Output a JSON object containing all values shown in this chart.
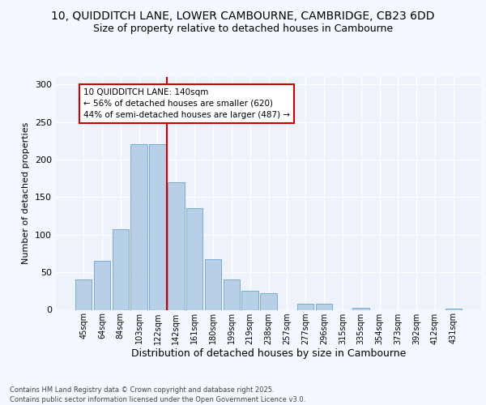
{
  "title_line1": "10, QUIDDITCH LANE, LOWER CAMBOURNE, CAMBRIDGE, CB23 6DD",
  "title_line2": "Size of property relative to detached houses in Cambourne",
  "xlabel": "Distribution of detached houses by size in Cambourne",
  "ylabel": "Number of detached properties",
  "bar_labels": [
    "45sqm",
    "64sqm",
    "84sqm",
    "103sqm",
    "122sqm",
    "142sqm",
    "161sqm",
    "180sqm",
    "199sqm",
    "219sqm",
    "238sqm",
    "257sqm",
    "277sqm",
    "296sqm",
    "315sqm",
    "335sqm",
    "354sqm",
    "373sqm",
    "392sqm",
    "412sqm",
    "431sqm"
  ],
  "bar_values": [
    40,
    65,
    107,
    220,
    220,
    170,
    135,
    67,
    40,
    25,
    22,
    0,
    8,
    8,
    0,
    3,
    0,
    0,
    0,
    0,
    2
  ],
  "bar_color": "#b8cfe8",
  "bar_edge_color": "#7aaad4",
  "vline_color": "#cc0000",
  "annotation_text": "10 QUIDDITCH LANE: 140sqm\n← 56% of detached houses are smaller (620)\n44% of semi-detached houses are larger (487) →",
  "annotation_box_color": "#ffffff",
  "annotation_box_edge": "#cc0000",
  "ylim": [
    0,
    310
  ],
  "yticks": [
    0,
    50,
    100,
    150,
    200,
    250,
    300
  ],
  "ax_facecolor": "#edf2fb",
  "fig_facecolor": "#f5f8fe",
  "footer": "Contains HM Land Registry data © Crown copyright and database right 2025.\nContains public sector information licensed under the Open Government Licence v3.0.",
  "grid_color": "#ffffff",
  "title_fontsize": 10,
  "subtitle_fontsize": 9
}
